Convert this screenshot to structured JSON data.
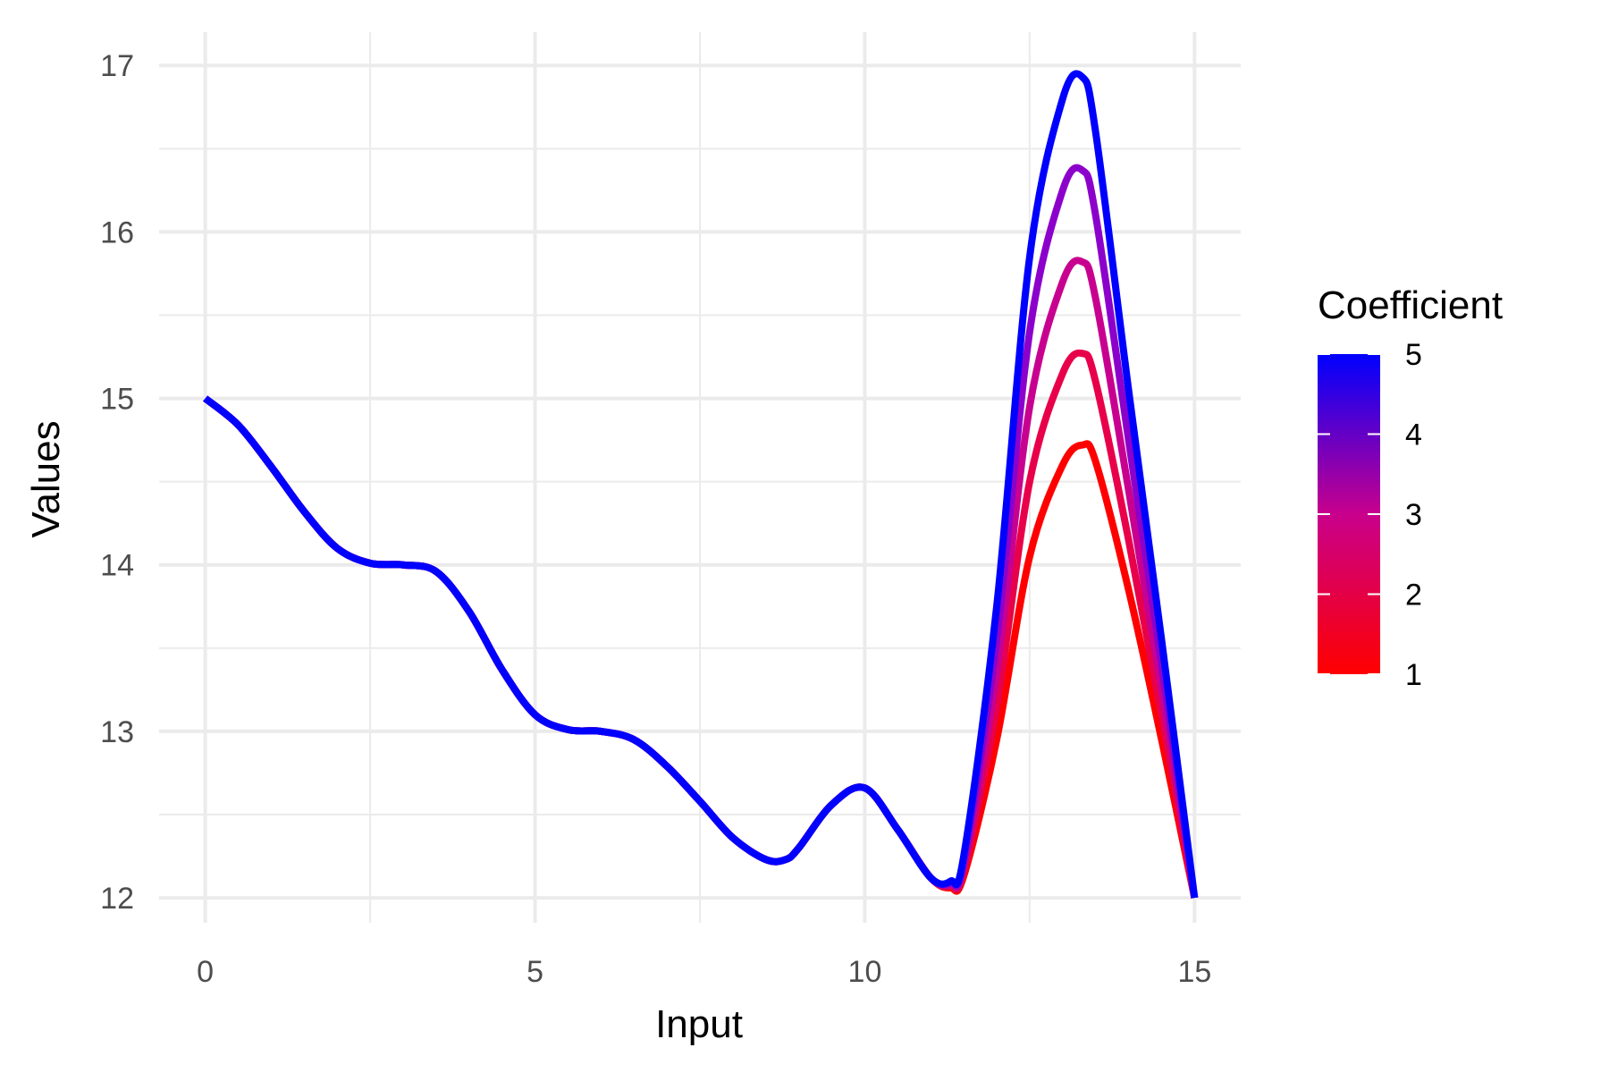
{
  "chart_data": {
    "type": "line",
    "title": "",
    "xlabel": "Input",
    "ylabel": "Values",
    "xlim": [
      -0.7,
      15.7
    ],
    "ylim": [
      11.85,
      17.2
    ],
    "x_ticks": [
      0,
      5,
      10,
      15
    ],
    "x_tick_labels": [
      "0",
      "5",
      "10",
      "15"
    ],
    "y_ticks": [
      12,
      13,
      14,
      15,
      16,
      17
    ],
    "y_tick_labels": [
      "12",
      "13",
      "14",
      "15",
      "16",
      "17"
    ],
    "grid": true,
    "legend": {
      "title": "Coefficient",
      "type": "colorbar",
      "placement": "right",
      "breaks": [
        "1",
        "2",
        "3",
        "4",
        "5"
      ],
      "low_color": "#ff0000",
      "high_color": "#0000ff"
    },
    "x": [
      0,
      0.5,
      1,
      1.5,
      2,
      2.5,
      3,
      3.5,
      4,
      4.5,
      5,
      5.5,
      6,
      6.5,
      7,
      7.5,
      8,
      8.5,
      8.8,
      9,
      9.5,
      10,
      10.5,
      11,
      11.3,
      11.5,
      12,
      12.5,
      13,
      13.3,
      13.5,
      14,
      14.5,
      15
    ],
    "series": [
      {
        "coefficient": 1,
        "color": "#ff0000",
        "values": [
          15,
          14.84,
          14.59,
          14.32,
          14.1,
          14.01,
          14,
          13.96,
          13.72,
          13.37,
          13.1,
          13.01,
          13,
          12.95,
          12.79,
          12.58,
          12.36,
          12.23,
          12.23,
          12.3,
          12.56,
          12.66,
          12.41,
          12.12,
          12.06,
          12.13,
          12.95,
          14.05,
          14.6,
          14.72,
          14.62,
          13.85,
          12.95,
          12
        ]
      },
      {
        "coefficient": 2,
        "color": "#e8004a",
        "values": [
          15,
          14.84,
          14.59,
          14.32,
          14.1,
          14.01,
          14,
          13.96,
          13.72,
          13.37,
          13.1,
          13.01,
          13,
          12.95,
          12.79,
          12.58,
          12.36,
          12.23,
          12.23,
          12.3,
          12.56,
          12.66,
          12.41,
          12.12,
          12.07,
          12.16,
          13.15,
          14.5,
          15.15,
          15.27,
          15.1,
          14.15,
          13.1,
          12
        ]
      },
      {
        "coefficient": 3,
        "color": "#c80090",
        "values": [
          15,
          14.84,
          14.59,
          14.32,
          14.1,
          14.01,
          14,
          13.96,
          13.72,
          13.37,
          13.1,
          13.01,
          13,
          12.95,
          12.79,
          12.58,
          12.36,
          12.23,
          12.23,
          12.3,
          12.56,
          12.66,
          12.41,
          12.12,
          12.08,
          12.19,
          13.35,
          14.95,
          15.7,
          15.82,
          15.6,
          14.45,
          13.25,
          12
        ]
      },
      {
        "coefficient": 4,
        "color": "#8c00cc",
        "values": [
          15,
          14.84,
          14.59,
          14.32,
          14.1,
          14.01,
          14,
          13.96,
          13.72,
          13.37,
          13.1,
          13.01,
          13,
          12.95,
          12.79,
          12.58,
          12.36,
          12.23,
          12.23,
          12.3,
          12.56,
          12.66,
          12.41,
          12.12,
          12.09,
          12.22,
          13.55,
          15.4,
          16.25,
          16.37,
          16.1,
          14.75,
          13.4,
          12
        ]
      },
      {
        "coefficient": 5,
        "color": "#0000ff",
        "values": [
          15,
          14.84,
          14.59,
          14.32,
          14.1,
          14.01,
          14,
          13.96,
          13.72,
          13.37,
          13.1,
          13.01,
          13,
          12.95,
          12.79,
          12.58,
          12.36,
          12.23,
          12.23,
          12.3,
          12.56,
          12.66,
          12.41,
          12.12,
          12.1,
          12.25,
          13.75,
          15.85,
          16.8,
          16.93,
          16.6,
          15.05,
          13.55,
          12
        ]
      }
    ]
  }
}
